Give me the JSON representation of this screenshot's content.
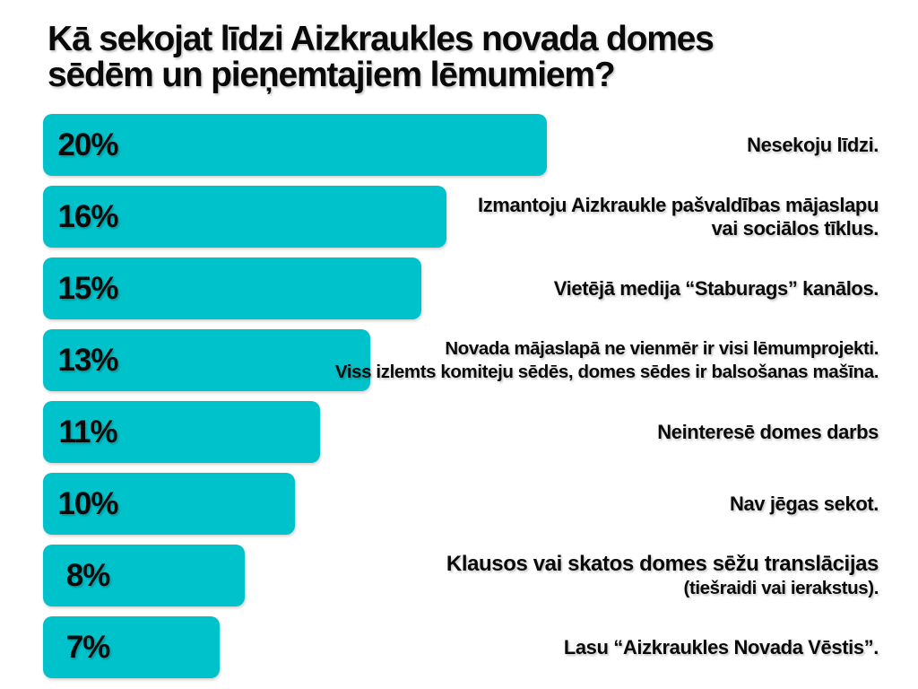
{
  "title": {
    "line1": "Kā sekojat līdzi Aizkraukles novada domes",
    "line2": "sēdēm un pieņemtajiem lēmumiem?"
  },
  "chart_data": {
    "type": "bar",
    "orientation": "horizontal",
    "title": "Kā sekojat līdzi Aizkraukles novada domes sēdēm un pieņemtajiem lēmumiem?",
    "categories": [
      "Nesekoju līdzi.",
      "Izmantoju Aizkraukle pašvaldības mājaslapu vai sociālos tīklus.",
      "Vietējā medija “Staburags” kanālos.",
      "Novada mājaslapā ne vienmēr ir visi lēmumprojekti. Viss izlemts komiteju sēdēs, domes sēdes ir balsošanas mašīna.",
      "Neinteresē domes darbs",
      "Nav jēgas sekot.",
      "Klausos vai skatos domes sēžu translācijas (tiešraidi vai ierakstus).",
      "Lasu “Aizkraukles Novada Vēstis”."
    ],
    "values": [
      20,
      16,
      15,
      13,
      11,
      10,
      8,
      7
    ],
    "value_suffix": "%",
    "xlim": [
      0,
      20
    ],
    "grid": false,
    "legend": "none",
    "value_labels_position": "inside-left",
    "category_labels_position": "right-aligned",
    "bar_color": "#00C2CB",
    "text_color": "#0a0a0a",
    "background": "#FFFFFF"
  },
  "bars": [
    {
      "pct": "20%",
      "line1": "Nesekoju līdzi.",
      "line2": ""
    },
    {
      "pct": "16%",
      "line1": "Izmantoju Aizkraukle pašvaldības mājaslapu",
      "line2": "vai sociālos tīklus."
    },
    {
      "pct": "15%",
      "line1": "Vietējā medija “Staburags” kanālos.",
      "line2": ""
    },
    {
      "pct": "13%",
      "line1": "Novada mājaslapā ne vienmēr ir visi lēmumprojekti.",
      "line2": "Viss izlemts komiteju sēdēs, domes sēdes ir balsošanas mašīna."
    },
    {
      "pct": "11%",
      "line1": "Neinteresē domes darbs",
      "line2": ""
    },
    {
      "pct": "10%",
      "line1": "Nav jēgas sekot.",
      "line2": ""
    },
    {
      "pct": "8%",
      "line1": "Klausos vai skatos domes sēžu translācijas",
      "line2": "(tiešraidi vai ierakstus)."
    },
    {
      "pct": "7%",
      "line1": "Lasu “Aizkraukles Novada Vēstis”.",
      "line2": ""
    }
  ]
}
